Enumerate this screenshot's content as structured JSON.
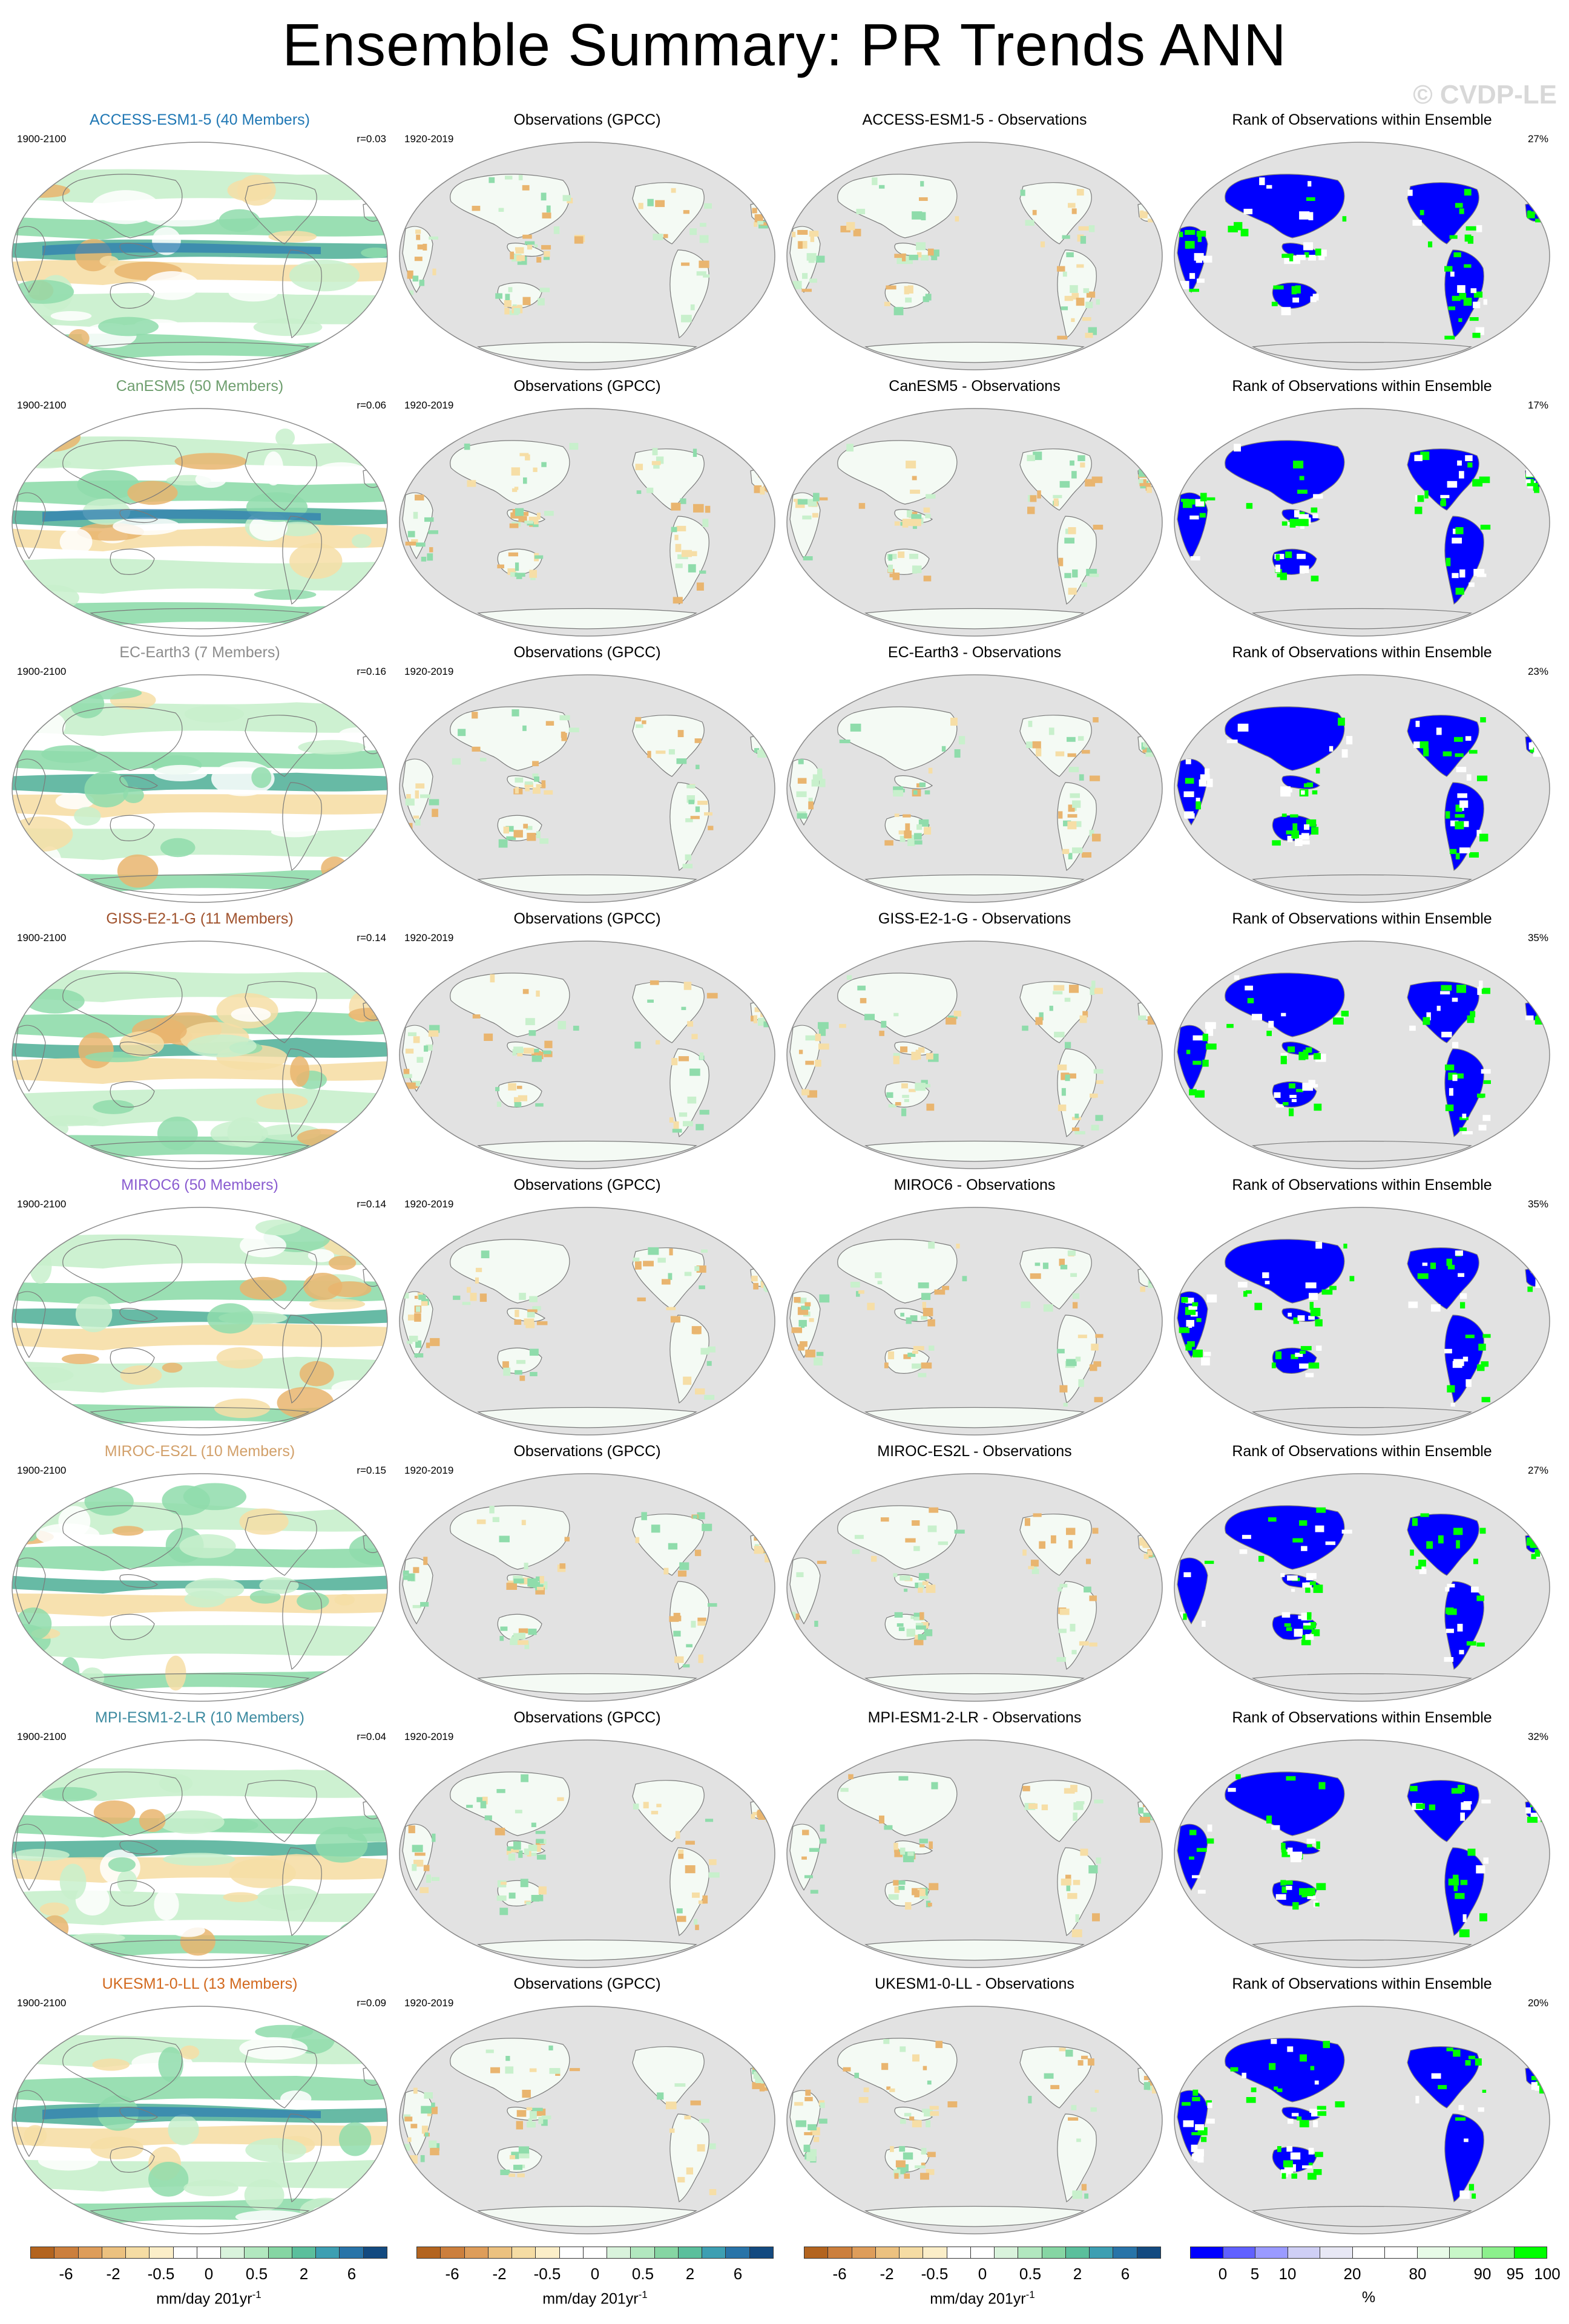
{
  "title": "Ensemble Summary: PR Trends ANN",
  "watermark": "© CVDP-LE",
  "obs_title": "Observations (GPCC)",
  "obs_period": "1920-2019",
  "model_period": "1900-2100",
  "rank_title": "Rank of Observations within Ensemble",
  "rows": [
    {
      "model_title": "ACCESS-ESM1-5 (40 Members)",
      "model_color": "#1f77b4",
      "r": "r=0.03",
      "diff_title": "ACCESS-ESM1-5 - Observations",
      "rank_pct": "27%"
    },
    {
      "model_title": "CanESM5 (50 Members)",
      "model_color": "#6e9e6e",
      "r": "r=0.06",
      "diff_title": "CanESM5 - Observations",
      "rank_pct": "17%"
    },
    {
      "model_title": "EC-Earth3 (7 Members)",
      "model_color": "#8c8c8c",
      "r": "r=0.16",
      "diff_title": "EC-Earth3 - Observations",
      "rank_pct": "23%"
    },
    {
      "model_title": "GISS-E2-1-G (11 Members)",
      "model_color": "#a0522d",
      "r": "r=0.14",
      "diff_title": "GISS-E2-1-G - Observations",
      "rank_pct": "35%"
    },
    {
      "model_title": "MIROC6 (50 Members)",
      "model_color": "#8a5cd0",
      "r": "r=0.14",
      "diff_title": "MIROC6 - Observations",
      "rank_pct": "35%"
    },
    {
      "model_title": "MIROC-ES2L (10 Members)",
      "model_color": "#d2a06a",
      "r": "r=0.15",
      "diff_title": "MIROC-ES2L - Observations",
      "rank_pct": "27%"
    },
    {
      "model_title": "MPI-ESM1-2-LR (10 Members)",
      "model_color": "#3c8aa0",
      "r": "r=0.04",
      "diff_title": "MPI-ESM1-2-LR - Observations",
      "rank_pct": "32%"
    },
    {
      "model_title": "UKESM1-0-LL (13 Members)",
      "model_color": "#d2691e",
      "r": "r=0.09",
      "diff_title": "UKESM1-0-LL - Observations",
      "rank_pct": "20%"
    }
  ],
  "trend_colorbar": {
    "ticks": [
      "-6",
      "-2",
      "-0.5",
      "0",
      "0.5",
      "2",
      "6"
    ],
    "unit": "mm/day 201yr",
    "unit_sup": "-1",
    "colors": [
      "#b3641f",
      "#cc7f3d",
      "#de9d5a",
      "#ecc17f",
      "#f5dca3",
      "#fbeec8",
      "#ffffff",
      "#ffffff",
      "#d9f3dc",
      "#b2e8bf",
      "#86d6a3",
      "#5bbf9c",
      "#3d9fb2",
      "#2874a8",
      "#134a80"
    ]
  },
  "rank_colorbar": {
    "ticks": [
      "0",
      "5",
      "10",
      "20",
      "80",
      "90",
      "95",
      "100"
    ],
    "unit": "%",
    "colors": [
      "#0000ff",
      "#6060ff",
      "#9a9aff",
      "#cfcff5",
      "#e8e8f5",
      "#ffffff",
      "#ffffff",
      "#e8fbe8",
      "#c8f7c8",
      "#8cf08c",
      "#00ff00"
    ]
  },
  "map_colors": {
    "ocean_grey": "#e2e2e2",
    "land_line": "#7a7a7a",
    "green_light": "#c8f0cc",
    "green_mid": "#8fdcab",
    "teal": "#56b39b",
    "blue": "#2f7db1",
    "tan": "#f6dea6",
    "orange": "#e9b56f",
    "rank_blue": "#0000ff",
    "rank_green": "#00ff00"
  }
}
